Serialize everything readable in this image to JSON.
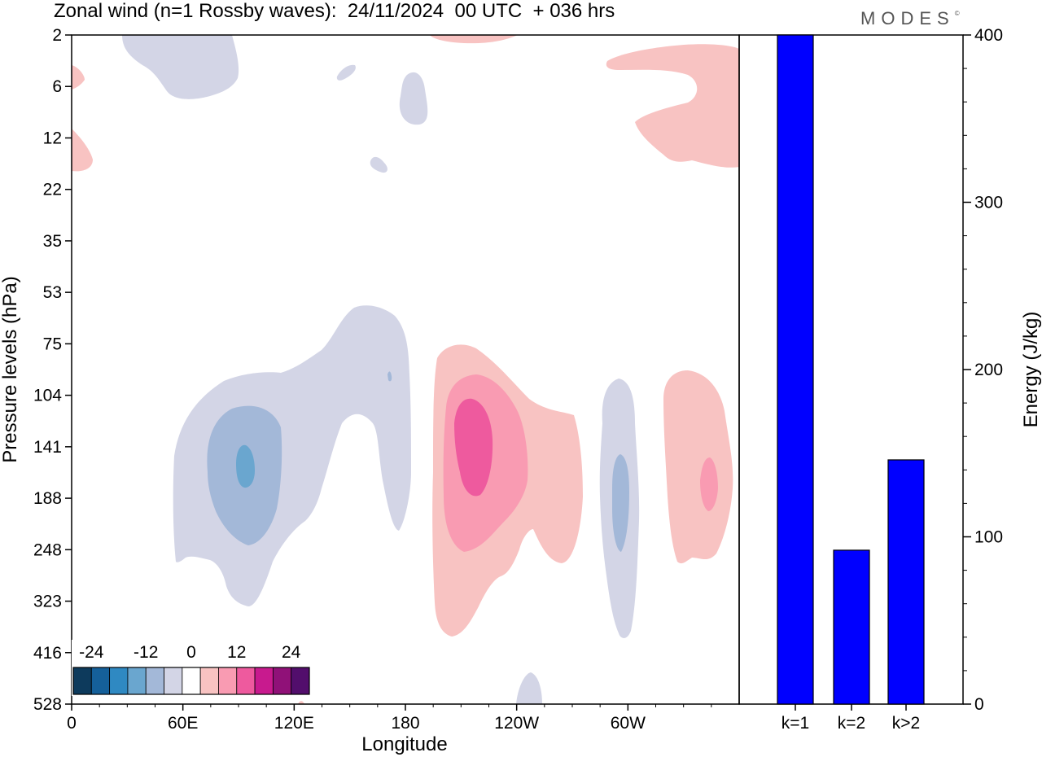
{
  "header": {
    "title": "Zonal wind (n=1 Rossby waves):  24/11/2024  00 UTC  + 036 hrs",
    "brand": "MODES",
    "brand_mark": "©"
  },
  "chart_data": [
    {
      "type": "heatmap",
      "title": "Zonal wind (n=1 Rossby waves):  24/11/2024  00 UTC  + 036 hrs",
      "xlabel": "Longitude",
      "ylabel": "Pressure levels (hPa)",
      "x_ticks": [
        "0",
        "60E",
        "120E",
        "180",
        "120W",
        "60W"
      ],
      "y_levels": [
        "2",
        "6",
        "12",
        "22",
        "35",
        "53",
        "75",
        "104",
        "141",
        "188",
        "248",
        "323",
        "416",
        "528"
      ],
      "y_scale": "irregular model levels",
      "colorbar": {
        "labels": [
          "-24",
          "-12",
          "0",
          "12",
          "24"
        ],
        "colors": [
          "#0d3a5c",
          "#15609a",
          "#2f89c2",
          "#6aa6cf",
          "#a3b8d8",
          "#d3d5e6",
          "#ffffff",
          "#f8c3c2",
          "#f99bb2",
          "#ee5a9e",
          "#c81a8e",
          "#901178",
          "#520e6c"
        ]
      },
      "features": [
        {
          "sign": "negative",
          "lon": 95,
          "level": "141",
          "peak": "-12 to -16"
        },
        {
          "sign": "negative",
          "lon": 170,
          "level": "75",
          "peak": "-4 to -8"
        },
        {
          "sign": "positive",
          "lon": 205,
          "level": "141",
          "peak": "8 to 12"
        },
        {
          "sign": "negative",
          "lon": 295,
          "level": "188",
          "peak": "-8 to -12"
        },
        {
          "sign": "positive",
          "lon": 345,
          "level": "188",
          "peak": "4 to 8"
        },
        {
          "sign": "positive",
          "lon": 340,
          "level": "6",
          "peak": "0 to 4"
        },
        {
          "sign": "negative",
          "lon": 70,
          "level": "2",
          "peak": "0 to -4"
        }
      ]
    },
    {
      "type": "bar",
      "categories": [
        "k=1",
        "k=2",
        "k>2"
      ],
      "values": [
        400,
        92,
        146
      ],
      "ylabel": "Energy (J/kg)",
      "ylim": [
        0,
        400
      ],
      "y_ticks": [
        "0",
        "100",
        "200",
        "300",
        "400"
      ],
      "bar_color": "#0000ff"
    }
  ]
}
